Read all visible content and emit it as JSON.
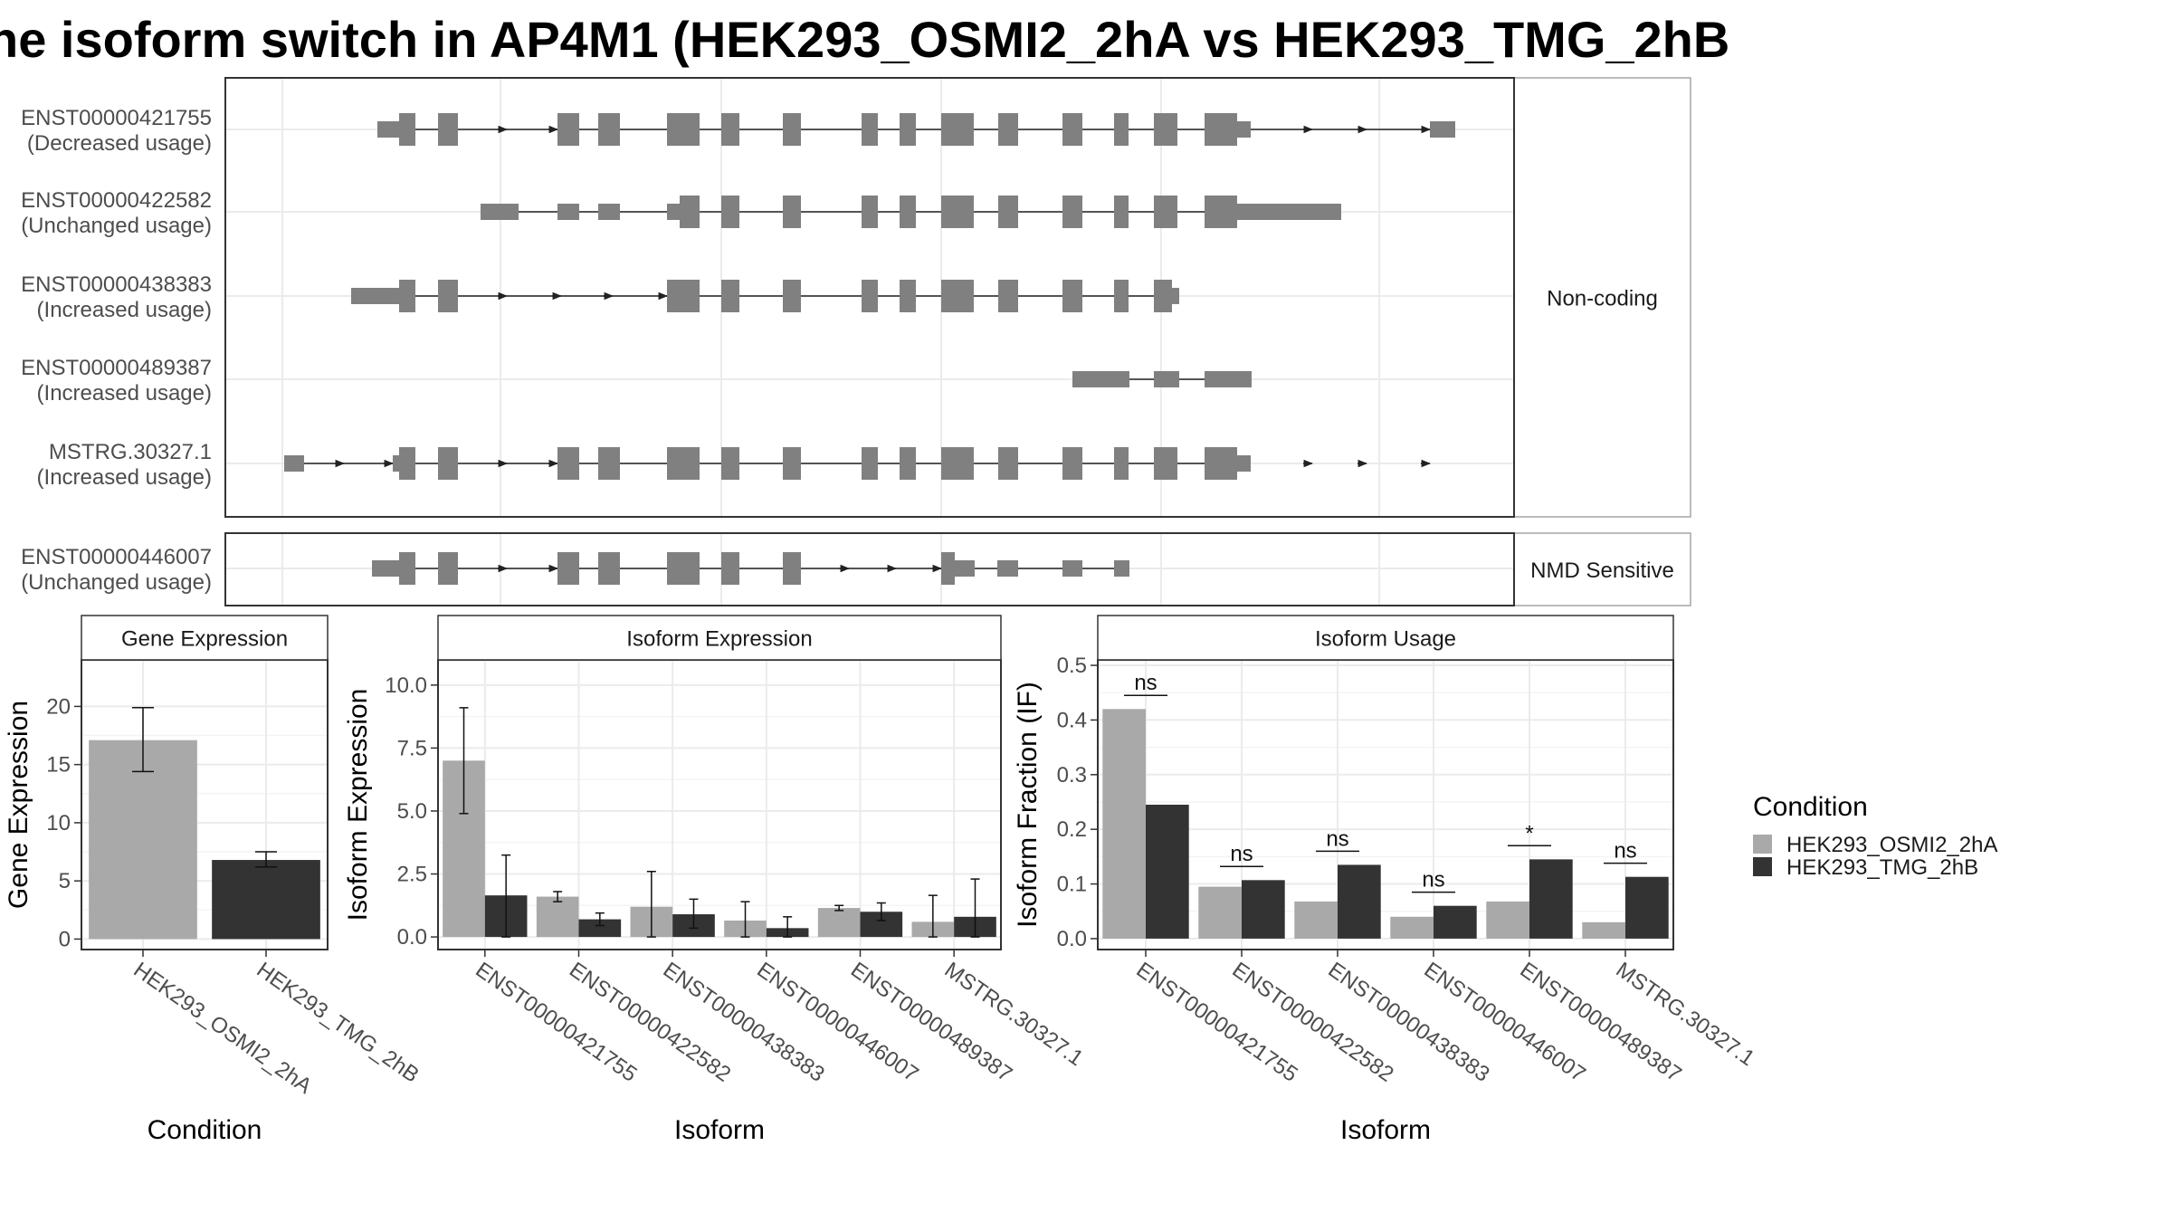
{
  "title": "he isoform switch in AP4M1 (HEK293_OSMI2_2hA vs HEK293_TMG_2hB",
  "colors": {
    "osmi": "#a9a9a9",
    "tmg": "#333333",
    "exon": "#808080",
    "panel_border": "#333333",
    "strip_border": "#a6a6a6",
    "grid": "#ebebeb"
  },
  "structure": {
    "panels": [
      {
        "strip": "Non-coding",
        "isoforms": [
          {
            "id": "ENST00000421755",
            "usage": "(Decreased usage)"
          },
          {
            "id": "ENST00000422582",
            "usage": "(Unchanged usage)"
          },
          {
            "id": "ENST00000438383",
            "usage": "(Increased usage)"
          },
          {
            "id": "ENST00000489387",
            "usage": "(Increased usage)"
          },
          {
            "id": "MSTRG.30327.1",
            "usage": "(Increased usage)"
          }
        ]
      },
      {
        "strip": "NMD Sensitive",
        "isoforms": [
          {
            "id": "ENST00000446007",
            "usage": "(Unchanged usage)"
          }
        ]
      }
    ]
  },
  "chart_data": [
    {
      "type": "bar",
      "title": "Gene Expression",
      "xlabel": "Condition",
      "ylabel": "Gene Expression",
      "categories": [
        "HEK293_OSMI2_2hA",
        "HEK293_TMG_2hB"
      ],
      "values": [
        17.1,
        6.8
      ],
      "errors": [
        [
          14.4,
          19.9
        ],
        [
          6.2,
          7.5
        ]
      ],
      "ylim": [
        -0.9,
        24
      ],
      "yticks": [
        0,
        5,
        10,
        15,
        20
      ],
      "ytick_labels": [
        "0",
        "5",
        "10",
        "15",
        "20"
      ]
    },
    {
      "type": "bar",
      "title": "Isoform Expression",
      "xlabel": "Isoform",
      "ylabel": "Isoform Expression",
      "categories": [
        "ENST00000421755",
        "ENST00000422582",
        "ENST00000438383",
        "ENST00000446007",
        "ENST00000489387",
        "MSTRG.30327.1"
      ],
      "series": [
        {
          "name": "HEK293_OSMI2_2hA",
          "values": [
            7.0,
            1.6,
            1.2,
            0.65,
            1.15,
            0.6
          ],
          "errors": [
            [
              4.9,
              9.1
            ],
            [
              1.4,
              1.8
            ],
            [
              0.0,
              2.6
            ],
            [
              0.0,
              1.4
            ],
            [
              1.05,
              1.25
            ],
            [
              0.0,
              1.65
            ]
          ]
        },
        {
          "name": "HEK293_TMG_2hB",
          "values": [
            1.65,
            0.7,
            0.9,
            0.35,
            1.0,
            0.8
          ],
          "errors": [
            [
              0.0,
              3.25
            ],
            [
              0.45,
              0.95
            ],
            [
              0.35,
              1.5
            ],
            [
              0.0,
              0.8
            ],
            [
              0.65,
              1.35
            ],
            [
              0.0,
              2.3
            ]
          ]
        }
      ],
      "ylim": [
        -0.5,
        11
      ],
      "yticks": [
        0,
        2.5,
        5,
        7.5,
        10
      ],
      "ytick_labels": [
        "0.0",
        "2.5",
        "5.0",
        "7.5",
        "10.0"
      ]
    },
    {
      "type": "bar",
      "title": "Isoform Usage",
      "xlabel": "Isoform",
      "ylabel": "Isoform Fraction (IF)",
      "categories": [
        "ENST00000421755",
        "ENST00000422582",
        "ENST00000438383",
        "ENST00000446007",
        "ENST00000489387",
        "MSTRG.30327.1"
      ],
      "series": [
        {
          "name": "HEK293_OSMI2_2hA",
          "values": [
            0.42,
            0.095,
            0.068,
            0.04,
            0.068,
            0.03
          ]
        },
        {
          "name": "HEK293_TMG_2hB",
          "values": [
            0.245,
            0.107,
            0.135,
            0.06,
            0.145,
            0.113
          ]
        }
      ],
      "significance": [
        "ns",
        "ns",
        "ns",
        "ns",
        "*",
        "ns"
      ],
      "ylim": [
        -0.02,
        0.51
      ],
      "yticks": [
        0,
        0.1,
        0.2,
        0.3,
        0.4,
        0.5
      ],
      "ytick_labels": [
        "0.0",
        "0.1",
        "0.2",
        "0.3",
        "0.4",
        "0.5"
      ]
    }
  ],
  "legend": {
    "title": "Condition",
    "items": [
      "HEK293_OSMI2_2hA",
      "HEK293_TMG_2hB"
    ]
  }
}
